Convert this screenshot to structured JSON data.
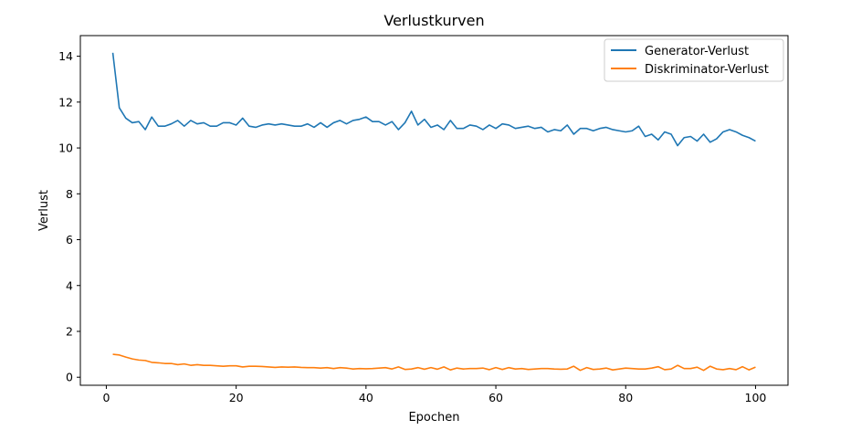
{
  "chart_data": {
    "type": "line",
    "title": "Verlustkurven",
    "xlabel": "Epochen",
    "ylabel": "Verlust",
    "xlim": [
      -4,
      105
    ],
    "ylim": [
      -0.35,
      14.9
    ],
    "xticks": [
      0,
      20,
      40,
      60,
      80,
      100
    ],
    "yticks": [
      0,
      2,
      4,
      6,
      8,
      10,
      12,
      14
    ],
    "grid": false,
    "legend_position": "top-right",
    "x": [
      1,
      2,
      3,
      4,
      5,
      6,
      7,
      8,
      9,
      10,
      11,
      12,
      13,
      14,
      15,
      16,
      17,
      18,
      19,
      20,
      21,
      22,
      23,
      24,
      25,
      26,
      27,
      28,
      29,
      30,
      31,
      32,
      33,
      34,
      35,
      36,
      37,
      38,
      39,
      40,
      41,
      42,
      43,
      44,
      45,
      46,
      47,
      48,
      49,
      50,
      51,
      52,
      53,
      54,
      55,
      56,
      57,
      58,
      59,
      60,
      61,
      62,
      63,
      64,
      65,
      66,
      67,
      68,
      69,
      70,
      71,
      72,
      73,
      74,
      75,
      76,
      77,
      78,
      79,
      80,
      81,
      82,
      83,
      84,
      85,
      86,
      87,
      88,
      89,
      90,
      91,
      92,
      93,
      94,
      95,
      96,
      97,
      98,
      99,
      100
    ],
    "series": [
      {
        "name": "Generator-Verlust",
        "color": "#1f77b4",
        "values": [
          14.15,
          11.75,
          11.3,
          11.1,
          11.15,
          10.8,
          11.35,
          10.95,
          10.95,
          11.05,
          11.2,
          10.95,
          11.2,
          11.05,
          11.1,
          10.95,
          10.95,
          11.1,
          11.1,
          11.0,
          11.3,
          10.95,
          10.9,
          11.0,
          11.05,
          11.0,
          11.05,
          11.0,
          10.95,
          10.95,
          11.05,
          10.9,
          11.1,
          10.9,
          11.1,
          11.2,
          11.05,
          11.2,
          11.25,
          11.35,
          11.15,
          11.15,
          11.0,
          11.15,
          10.8,
          11.1,
          11.6,
          11.0,
          11.25,
          10.9,
          11.0,
          10.8,
          11.2,
          10.85,
          10.85,
          11.0,
          10.95,
          10.8,
          11.0,
          10.85,
          11.05,
          11.0,
          10.85,
          10.9,
          10.95,
          10.85,
          10.9,
          10.7,
          10.8,
          10.75,
          11.0,
          10.6,
          10.85,
          10.85,
          10.75,
          10.85,
          10.9,
          10.8,
          10.75,
          10.7,
          10.75,
          10.95,
          10.5,
          10.6,
          10.35,
          10.7,
          10.6,
          10.1,
          10.45,
          10.5,
          10.3,
          10.6,
          10.25,
          10.4,
          10.7,
          10.8,
          10.7,
          10.55,
          10.45,
          10.3
        ]
      },
      {
        "name": "Diskriminator-Verlust",
        "color": "#ff7f0e",
        "values": [
          1.0,
          0.97,
          0.88,
          0.8,
          0.75,
          0.73,
          0.65,
          0.63,
          0.6,
          0.6,
          0.55,
          0.58,
          0.52,
          0.55,
          0.52,
          0.52,
          0.5,
          0.48,
          0.5,
          0.5,
          0.45,
          0.48,
          0.48,
          0.47,
          0.45,
          0.43,
          0.45,
          0.44,
          0.45,
          0.43,
          0.42,
          0.42,
          0.4,
          0.42,
          0.38,
          0.42,
          0.4,
          0.36,
          0.38,
          0.37,
          0.38,
          0.4,
          0.42,
          0.36,
          0.45,
          0.34,
          0.36,
          0.42,
          0.35,
          0.42,
          0.35,
          0.45,
          0.32,
          0.4,
          0.36,
          0.38,
          0.38,
          0.4,
          0.33,
          0.42,
          0.34,
          0.42,
          0.36,
          0.38,
          0.34,
          0.36,
          0.38,
          0.38,
          0.36,
          0.35,
          0.36,
          0.48,
          0.3,
          0.42,
          0.34,
          0.36,
          0.4,
          0.32,
          0.36,
          0.4,
          0.38,
          0.36,
          0.36,
          0.4,
          0.46,
          0.33,
          0.36,
          0.52,
          0.38,
          0.38,
          0.44,
          0.3,
          0.48,
          0.36,
          0.33,
          0.38,
          0.33,
          0.46,
          0.32,
          0.44
        ]
      }
    ]
  }
}
